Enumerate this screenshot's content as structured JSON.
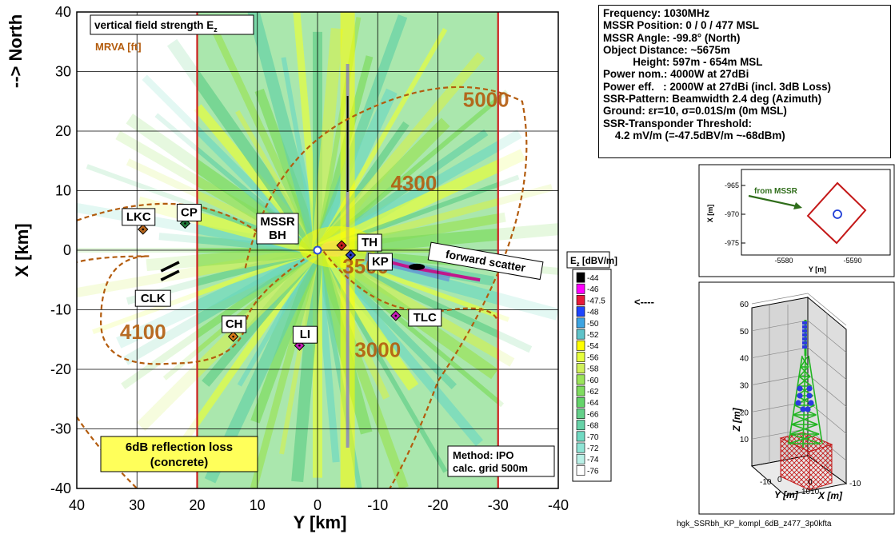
{
  "chart_data": [
    {
      "type": "heatmap",
      "title": "vertical field strength E",
      "title_sub": "z",
      "subtitle": "MRVA [ft]",
      "xlabel": "Y [km]",
      "ylabel": "X [km]",
      "ylabel_extra": "--> North",
      "xlim": [
        40,
        -40
      ],
      "ylim": [
        -40,
        40
      ],
      "x_ticks": [
        40,
        30,
        20,
        10,
        0,
        -10,
        -20,
        -30,
        -40
      ],
      "y_ticks": [
        40,
        30,
        20,
        10,
        0,
        -10,
        -20,
        -30,
        -40
      ],
      "grid": true,
      "boundary_y": [
        20,
        -30
      ],
      "mrva_labels": [
        {
          "text": "5000",
          "y": -28,
          "x": 25
        },
        {
          "text": "4300",
          "y": -16,
          "x": 11
        },
        {
          "text": "3500",
          "y": -8,
          "x": -3
        },
        {
          "text": "4100",
          "y": 29,
          "x": -14
        },
        {
          "text": "3000",
          "y": -10,
          "x": -17
        }
      ],
      "sites": [
        {
          "label": "MSSR\nBH",
          "y": 0,
          "x": 0,
          "color": "#2b4fd9",
          "shape": "circle"
        },
        {
          "label": "TH",
          "y": -4,
          "x": 0.8,
          "color": "#c81e1e",
          "shape": "diamond"
        },
        {
          "label": "KP",
          "y": -5.5,
          "x": -0.8,
          "color": "#2c3fbf",
          "shape": "diamond"
        },
        {
          "label": "CP",
          "y": 22,
          "x": 4.5,
          "color": "#1f7a3a",
          "shape": "diamond"
        },
        {
          "label": "LKC",
          "y": 29,
          "x": 3.5,
          "color": "#b5651d",
          "shape": "diamond"
        },
        {
          "label": "CH",
          "y": 14,
          "x": -14.5,
          "color": "#d97b1a",
          "shape": "diamond"
        },
        {
          "label": "LI",
          "y": 3,
          "x": -16,
          "color": "#c51fb5",
          "shape": "diamond"
        },
        {
          "label": "TLC",
          "y": -13,
          "x": -11,
          "color": "#c51fb5",
          "shape": "diamond"
        }
      ],
      "clk_label": "CLK",
      "annotations": [
        "forward scatter",
        "6dB reflection loss\n(concrete)",
        "Method: IPO\ncalc. grid 500m"
      ]
    },
    {
      "type": "heatmap",
      "xlabel": "Y [m]",
      "ylabel": "X [m]",
      "annotation": "from MSSR",
      "x_ticks": [
        -5580,
        -5590
      ],
      "y_ticks": [
        -965,
        -970,
        -975
      ]
    },
    {
      "type": "other",
      "zlabel": "Z [m]",
      "xlabel": "X [m]",
      "ylabel": "Y [m]",
      "z_ticks": [
        10,
        20,
        30,
        40,
        50,
        60
      ],
      "x_tick_labels": [
        "0",
        "1010",
        "-10"
      ],
      "y_tick_labels": [
        "-10",
        "0"
      ]
    }
  ],
  "legend": {
    "title": "E",
    "title_sub": "z",
    "title_rest": " [dBV/m]",
    "levels": [
      "-44",
      "-46",
      "-47.5",
      "-48",
      "-50",
      "-52",
      "-54",
      "-56",
      "-58",
      "-60",
      "-62",
      "-64",
      "-66",
      "-68",
      "-70",
      "-72",
      "-74",
      "-76"
    ],
    "colors": [
      "#000000",
      "#ff00ff",
      "#e81a3a",
      "#1e45ff",
      "#3da4e2",
      "#5fc3c9",
      "#ffff00",
      "#e6ff3d",
      "#cff05a",
      "#9be45a",
      "#7fdc5f",
      "#64d46a",
      "#64d08a",
      "#66d2a7",
      "#70dac2",
      "#8ee4d5",
      "#b9f0e6",
      "#ffffff"
    ],
    "arrow_label": "<----"
  },
  "info": {
    "line1": "Frequency: 1030MHz",
    "line2": "MSSR Position: 0 / 0 / 477 MSL",
    "line3": "MSSR Angle: -99.8° (North)",
    "line4": "Object Distance: ~5675m",
    "line5": "          Height: 597m - 654m MSL",
    "line6": "Power nom.: 4000W at 27dBi",
    "line7": "Power eff.   : 2000W at 27dBi (incl. 3dB Loss)",
    "line8": "SSR-Pattern: Beamwidth 2.4 deg (Azimuth)",
    "line9": "Ground: εr=10, σ=0.01S/m (0m MSL)",
    "line10": "SSR-Transponder Threshold:",
    "line11": "    4.2 mV/m (=-47.5dBV/m ~-68dBm)"
  },
  "footer": "hgk_SSRbh_KP_kompl_6dB_z477_3p0kfta"
}
